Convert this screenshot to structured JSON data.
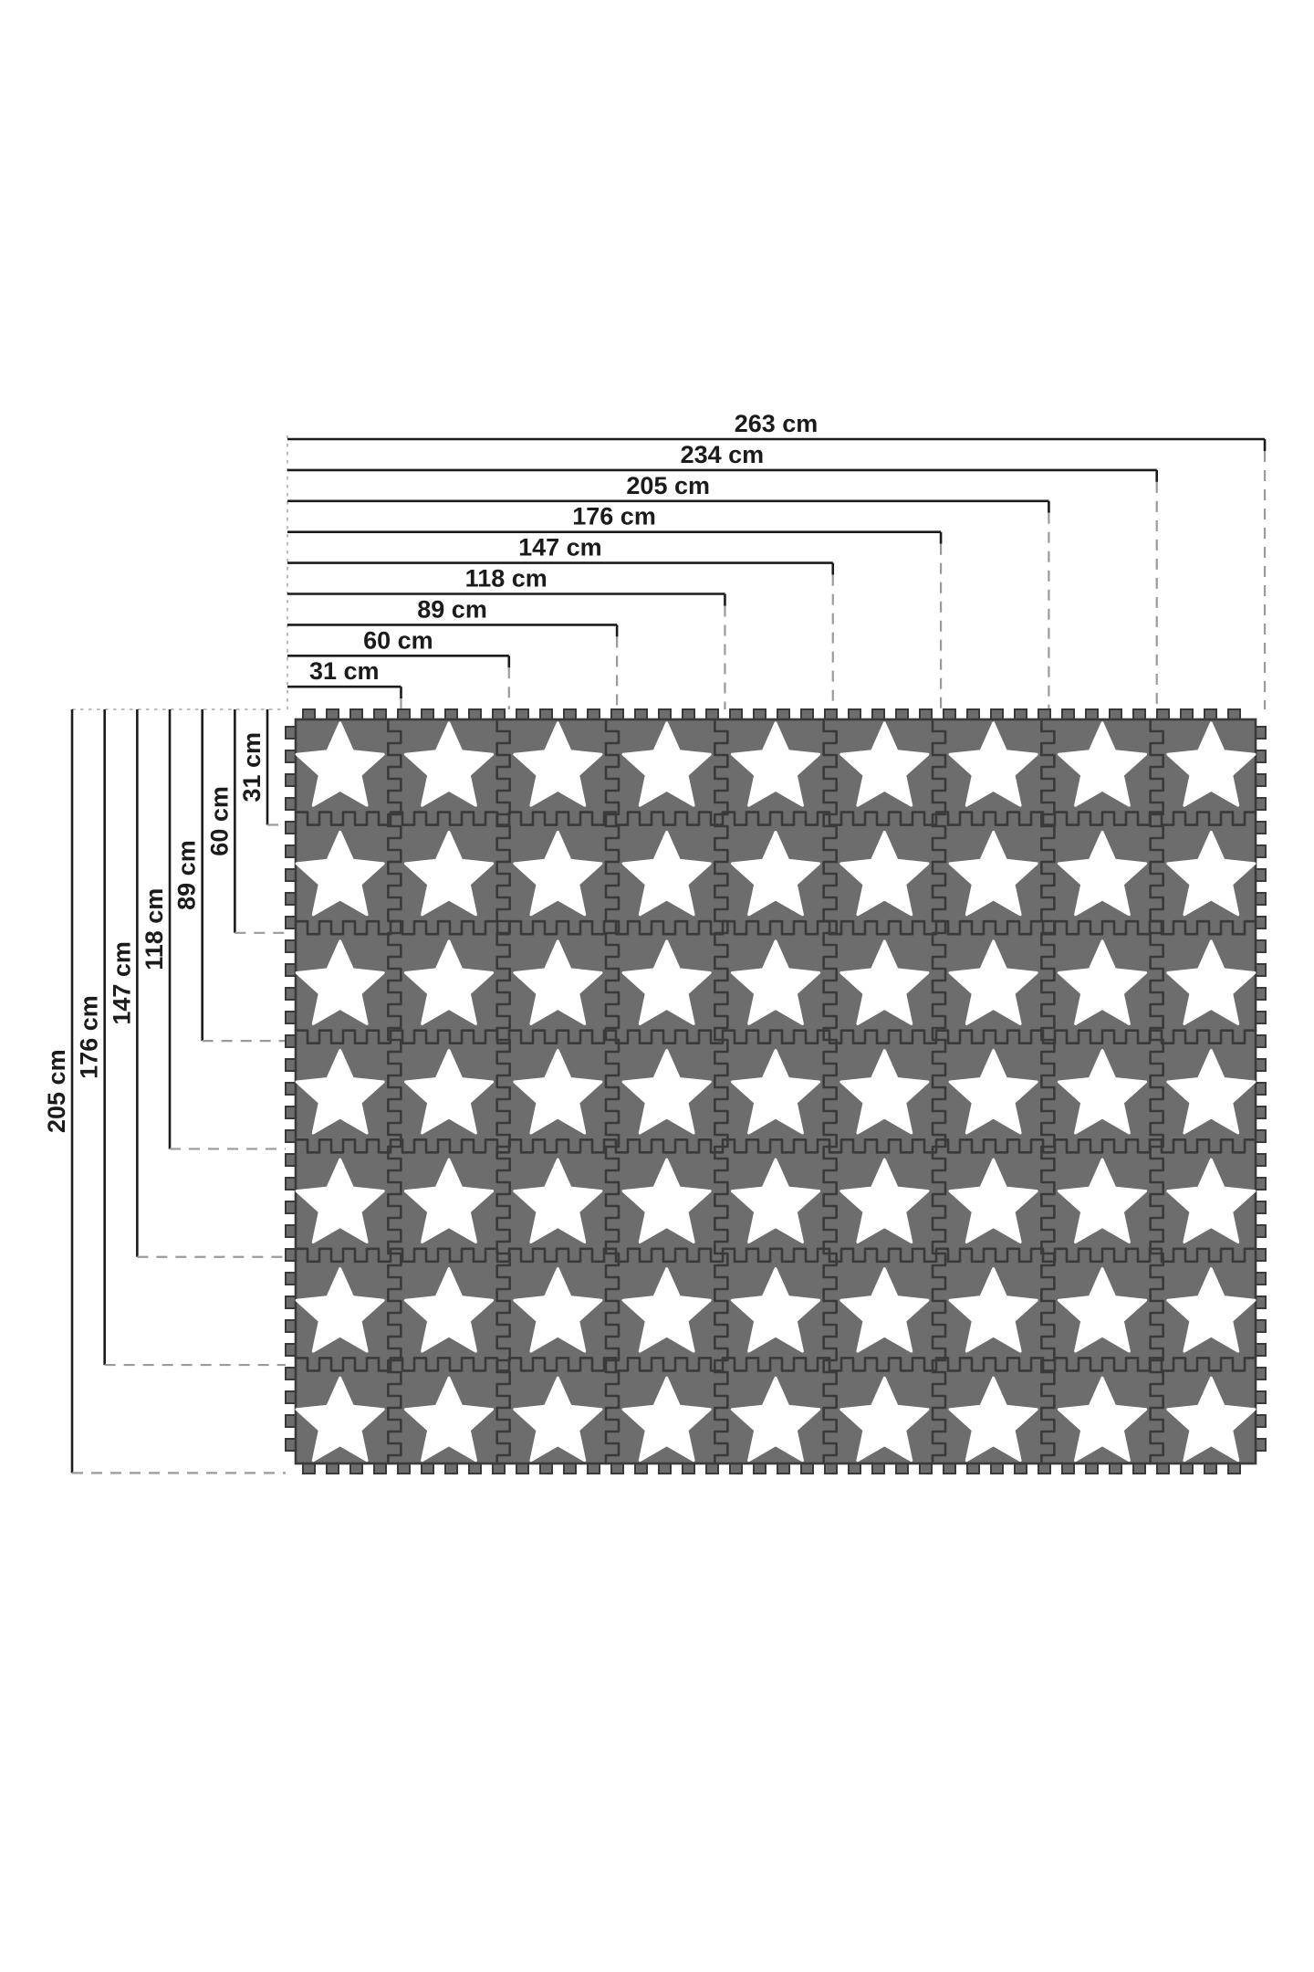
{
  "diagram": {
    "top_dimensions": [
      {
        "label": "263 cm",
        "value_cm": 263
      },
      {
        "label": "234 cm",
        "value_cm": 234
      },
      {
        "label": "205 cm",
        "value_cm": 205
      },
      {
        "label": "176 cm",
        "value_cm": 176
      },
      {
        "label": "147 cm",
        "value_cm": 147
      },
      {
        "label": "118 cm",
        "value_cm": 118
      },
      {
        "label": "89 cm",
        "value_cm": 89
      },
      {
        "label": "60 cm",
        "value_cm": 60
      },
      {
        "label": "31 cm",
        "value_cm": 31
      }
    ],
    "left_dimensions": [
      {
        "label": "205 cm",
        "value_cm": 205
      },
      {
        "label": "176 cm",
        "value_cm": 176
      },
      {
        "label": "147 cm",
        "value_cm": 147
      },
      {
        "label": "118 cm",
        "value_cm": 118
      },
      {
        "label": "89 cm",
        "value_cm": 89
      },
      {
        "label": "60 cm",
        "value_cm": 60
      },
      {
        "label": "31 cm",
        "value_cm": 31
      }
    ],
    "mat": {
      "columns": 9,
      "rows": 7,
      "tile_count": 63,
      "tile_motif": "star"
    },
    "colors": {
      "background": "#ffffff",
      "tile": "#6d6d6d",
      "tile_border": "#3a3a3a",
      "star": "#ffffff",
      "dimension_line": "#1b1b1b",
      "extension_line": "#9a9a9a",
      "guide_line": "#b4b4b4"
    }
  }
}
